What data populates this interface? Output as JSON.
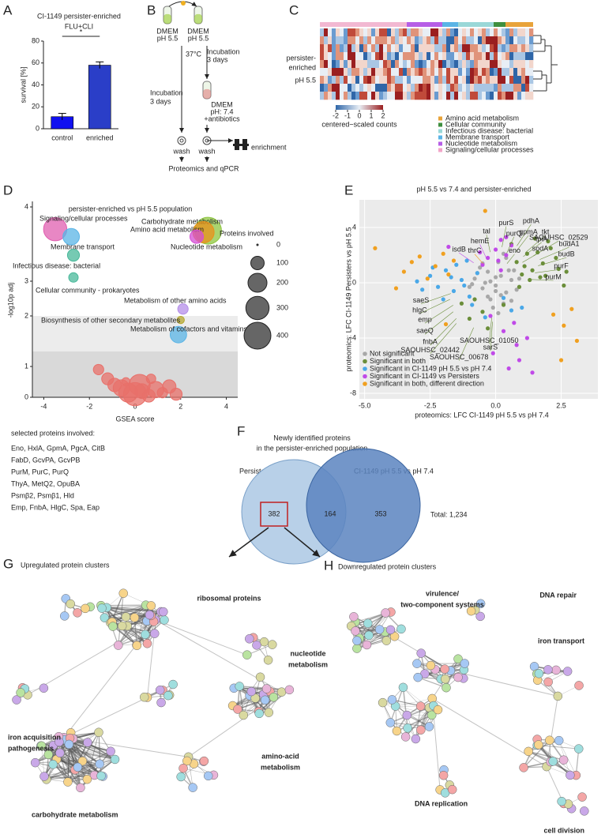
{
  "panel_labels": [
    "A",
    "B",
    "C",
    "D",
    "E",
    "F",
    "G",
    "H"
  ],
  "chart_data": [
    {
      "type": "bar",
      "title": "CI-1149 persister-enriched",
      "subtitle": "FLU+CLI",
      "y_label": "survival [%]",
      "categories": [
        "control",
        "enriched"
      ],
      "values": [
        11,
        58
      ],
      "errors": [
        3,
        3
      ],
      "colors": [
        "#1010f0",
        "#2a3ec8"
      ],
      "ylim": [
        0,
        80
      ],
      "yticks": [
        0,
        20,
        40,
        60,
        80
      ],
      "annotation": "*"
    },
    {
      "type": "bubble",
      "title": "persister-enriched vs pH 5.5 population",
      "x_label": "GSEA score",
      "y_label": "-log10p adj",
      "xlim": [
        -4.5,
        4.5
      ],
      "xticks": [
        -4,
        -2,
        0,
        2,
        4
      ],
      "ylim": [
        0,
        4.2
      ],
      "yticks": [
        0,
        1,
        2,
        3,
        4
      ],
      "thresholds": [
        1.3,
        2
      ],
      "size_legend_title": "Proteins involved",
      "size_legend": [
        0,
        100,
        200,
        300,
        400
      ],
      "series": [
        {
          "name": "Signaling/cellular processes",
          "color": "#e05fb0",
          "x": [
            -3.5
          ],
          "values": [
            3.7
          ],
          "sizes": [
            300
          ]
        },
        {
          "name": "Membrane transport",
          "color": "#5ab4e6",
          "x": [
            -2.8
          ],
          "values": [
            3.6
          ],
          "sizes": [
            150
          ]
        },
        {
          "name": "Carbohydrate metabolism",
          "color": "#8dc63f",
          "x": [
            3.2
          ],
          "values": [
            3.68
          ],
          "sizes": [
            400
          ]
        },
        {
          "name": "Amino acid metabolism",
          "color": "#e8901a",
          "x": [
            3.0
          ],
          "values": [
            3.66
          ],
          "sizes": [
            250
          ]
        },
        {
          "name": "Nucleotide metabolism",
          "color": "#d44ed4",
          "x": [
            2.7
          ],
          "values": [
            3.6
          ],
          "sizes": [
            100
          ]
        },
        {
          "name": "Infectious disease: bacterial",
          "color": "#48b89a",
          "x": [
            -2.7
          ],
          "values": [
            3.35
          ],
          "sizes": [
            80
          ]
        },
        {
          "name": "Cellular community - prokaryotes",
          "color": "#48b89a",
          "x": [
            -2.7
          ],
          "values": [
            3.05
          ],
          "sizes": [
            50
          ]
        },
        {
          "name": "Metabolism of other amino acids",
          "color": "#b48ee8",
          "x": [
            2.1
          ],
          "values": [
            2.2
          ],
          "sizes": [
            60
          ]
        },
        {
          "name": "Biosynthesis of other secondary metabolites",
          "color": "#b5a830",
          "x": [
            2.0
          ],
          "values": [
            1.92
          ],
          "sizes": [
            30
          ]
        },
        {
          "name": "Metabolism of cofactors and vitamins",
          "color": "#5ab4e6",
          "x": [
            1.9
          ],
          "values": [
            1.63
          ],
          "sizes": [
            150
          ]
        },
        {
          "color": "#e8706a",
          "x": [
            -1.6,
            -1.2,
            -0.9,
            -0.6,
            -0.3,
            0,
            0.3,
            0.6,
            0.9,
            1.2,
            1.5,
            1.8,
            -0.4,
            0.2,
            0.7
          ],
          "values": [
            0.9,
            0.6,
            0.4,
            0.3,
            0.15,
            0.1,
            0.2,
            0.05,
            0.25,
            0.15,
            0.35,
            0.1,
            0.5,
            0.4,
            0.6
          ],
          "sizes": [
            60,
            80,
            100,
            150,
            200,
            300,
            120,
            90,
            150,
            60,
            100,
            80,
            40,
            250,
            50
          ]
        }
      ]
    },
    {
      "type": "scatter",
      "title": "pH 5.5 vs 7.4 and persister-enriched",
      "x_label": "proteomics: LFC CI-1149 pH 5.5 vs pH 7.4",
      "y_label": "proteomics: LFC CI-1149 Persisters vs pH 5.5",
      "xlim": [
        -5.2,
        3.9
      ],
      "xticks": [
        {
          "value": -5,
          "label": "-5.0"
        },
        -2.5,
        {
          "value": 0,
          "label": "0.0"
        },
        2.5
      ],
      "ylim": [
        -8.4,
        6
      ],
      "yticks": [
        -8,
        -4,
        0,
        4
      ],
      "grid": true,
      "legend": "bottom-left",
      "series": [
        {
          "name": "Not significant",
          "color": "#a8a8a8",
          "x": [
            -0.8,
            -0.5,
            -0.3,
            0,
            0.2,
            0.4,
            0.6,
            -1,
            -0.6,
            -0.2,
            0.1,
            0.3,
            0.5,
            0.8,
            -0.4,
            0,
            0.2,
            -0.7,
            0.7,
            -0.1,
            0.4,
            -0.9,
            0.9,
            -0.3,
            0.1,
            0.6,
            -0.5,
            0.3,
            -0.2,
            0
          ],
          "values": [
            0.3,
            -0.4,
            0.8,
            -0.2,
            0.5,
            -0.7,
            0.2,
            -0.3,
            1.1,
            -1.2,
            1.5,
            -1.5,
            0.9,
            -0.5,
            0,
            0.4,
            -0.9,
            0.7,
            0.9,
            -1.8,
            1.8,
            -0.1,
            0.3,
            -1,
            -2.2,
            -1.3,
            1.4,
            2.1,
            0.1,
            -0.6
          ]
        },
        {
          "name": "Significant in both",
          "color": "#6b8e3a",
          "x": [
            0.8,
            1.2,
            1.5,
            1.8,
            2.1,
            2.4,
            2.7,
            1,
            1.4,
            1.9,
            2.3,
            2.6,
            0.6,
            1.1,
            1.6,
            2,
            0.9,
            1.3,
            -0.5,
            -1,
            -1.3,
            -0.3,
            -0.8,
            0.3,
            1.7
          ],
          "values": [
            1.5,
            2.1,
            3.2,
            1.4,
            2.5,
            1,
            0.8,
            0.6,
            0.9,
            0.5,
            1.8,
            -0.2,
            2.8,
            1.2,
            2.2,
            3.0,
            -0.3,
            0.2,
            -2.1,
            -2.6,
            -1.5,
            -3.3,
            -1.2,
            -1.6,
            0.4
          ]
        },
        {
          "name": "Significant in CI-1149 pH 5.5 vs pH 7.4",
          "color": "#4aa8e8",
          "x": [
            -2.5,
            -2.2,
            -1.9,
            -1.6,
            -1.3,
            -1,
            -0.7,
            -2.8,
            -2,
            -1.5,
            -1.2,
            -0.9,
            0.3,
            0.6,
            -3,
            -1.7,
            -0.4,
            1,
            -2.4,
            -1.1
          ],
          "values": [
            0.5,
            -0.3,
            0.9,
            -0.6,
            0.2,
            -1,
            0.7,
            -0.5,
            -1.2,
            1.3,
            -0.2,
            -1.6,
            -1.1,
            -2,
            0.1,
            0.4,
            -2.5,
            -1.8,
            1.1,
            1.6
          ]
        },
        {
          "name": "Significant in CI-1149 vs Persisters",
          "color": "#c04ae8",
          "x": [
            -0.3,
            0,
            0.2,
            0.4,
            0.6,
            -0.5,
            0.1,
            0.3,
            0.8,
            -0.1,
            0.5,
            -1.8,
            0.7,
            0.2,
            1.2,
            0.9,
            0.4,
            -0.2,
            1.4,
            -0.6
          ],
          "values": [
            1.8,
            2.4,
            3.1,
            2,
            2.7,
            1.3,
            1.6,
            -3.5,
            -4.5,
            -5.1,
            -6.2,
            2.6,
            -2.9,
            0.9,
            -4,
            -5.6,
            3.3,
            -2.4,
            -6.5,
            2.2
          ]
        },
        {
          "name": "Significant in both, different direction",
          "color": "#f0a020",
          "x": [
            -4.6,
            -3.5,
            -3.2,
            -2.9,
            -2.6,
            -2.3,
            -2,
            -1.8,
            -3.8,
            -1.6,
            2.2,
            2.6,
            2.9,
            3.1,
            2.5,
            -1.9,
            -0.4
          ],
          "values": [
            2.5,
            0.8,
            1.5,
            1.9,
            0.3,
            1.2,
            2.1,
            0.6,
            -0.4,
            1.6,
            -2.3,
            -3.1,
            -1.9,
            -4.2,
            -5.6,
            -3.0,
            5.2
          ]
        }
      ],
      "annotations": [
        {
          "text": "purS",
          "x": 0.4,
          "y": 4.3,
          "color": "#6b8e3a"
        },
        {
          "text": "pdhA",
          "x": 1.35,
          "y": 4.45,
          "color": "#6b8e3a"
        },
        {
          "text": "tal",
          "x": -0.35,
          "y": 3.7,
          "color": "#6b8e3a"
        },
        {
          "text": "purQ",
          "x": 0.7,
          "y": 3.55,
          "color": "#6b8e3a"
        },
        {
          "text": "gpmA",
          "x": 1.25,
          "y": 3.65,
          "color": "#6b8e3a"
        },
        {
          "text": "tkt",
          "x": 1.9,
          "y": 3.65,
          "color": "#6b8e3a"
        },
        {
          "text": "eno",
          "x": 0.72,
          "y": 2.3,
          "color": "#6b8e3a"
        },
        {
          "text": "tpiA",
          "x": 1.75,
          "y": 3.15,
          "color": "#6b8e3a"
        },
        {
          "text": "SAOUHSC_02529",
          "x": 2.4,
          "y": 3.25,
          "color": "#6b8e3a"
        },
        {
          "text": "budA1",
          "x": 2.8,
          "y": 2.8,
          "color": "#6b8e3a"
        },
        {
          "text": "budB",
          "x": 2.7,
          "y": 2.05,
          "color": "#6b8e3a"
        },
        {
          "text": "purF",
          "x": 2.5,
          "y": 1.2,
          "color": "#6b8e3a"
        },
        {
          "text": "hemE",
          "x": -0.6,
          "y": 3.0,
          "color": "#c04ae8"
        },
        {
          "text": "isdB",
          "x": -1.4,
          "y": 2.4,
          "color": "#c04ae8"
        },
        {
          "text": "thrC",
          "x": -0.8,
          "y": 2.3,
          "color": "#f0a020"
        },
        {
          "text": "sodA",
          "x": 1.7,
          "y": 2.45,
          "color": "#6b8e3a"
        },
        {
          "text": "purM",
          "x": 2.2,
          "y": 0.4,
          "color": "#6b8e3a"
        },
        {
          "text": "saeS",
          "x": -2.85,
          "y": -1.3,
          "color": "#6b8e3a"
        },
        {
          "text": "hlgC",
          "x": -2.9,
          "y": -2,
          "color": "#6b8e3a"
        },
        {
          "text": "emp",
          "x": -2.7,
          "y": -2.7,
          "color": "#6b8e3a"
        },
        {
          "text": "saeQ",
          "x": -2.7,
          "y": -3.5,
          "color": "#6b8e3a"
        },
        {
          "text": "fnbA",
          "x": -2.5,
          "y": -4.3,
          "color": "#6b8e3a"
        },
        {
          "text": "SAOUHSC_02442",
          "x": -2.5,
          "y": -4.9,
          "color": "#6b8e3a"
        },
        {
          "text": "SAOUHSC_00678",
          "x": -1.4,
          "y": -5.4,
          "color": "#6b8e3a"
        },
        {
          "text": "SAOUHSC_01050",
          "x": -0.25,
          "y": -4.2,
          "color": "#6b8e3a"
        },
        {
          "text": "sarS",
          "x": -0.2,
          "y": -4.7,
          "color": "#6b8e3a"
        }
      ]
    }
  ],
  "schematic": {
    "tube_left": [
      "DMEM",
      "pH 5.5"
    ],
    "tube_right": [
      "DMEM",
      "pH 5.5"
    ],
    "temperature": "37°C",
    "incubation_right": [
      "Incubation",
      "3 days"
    ],
    "incubation_left": [
      "Incubation",
      "3 days"
    ],
    "tube_antibiotics": [
      "DMEM",
      "pH: 7.4",
      "+antibiotics"
    ],
    "wash_left": "wash",
    "wash_right": "wash",
    "enrichment": "enrichment",
    "outcome": "Proteomics and qPCR"
  },
  "heatmap": {
    "row_labels": [
      [
        "persister-",
        "enriched"
      ],
      [
        "pH 5.5"
      ]
    ],
    "colorbar_ticks": [
      -2,
      -1,
      0,
      1,
      2
    ],
    "colorbar_label": "centered−scaled counts",
    "categories": [
      {
        "name": "Amino acid metabolism",
        "color": "#e8a33a"
      },
      {
        "name": "Cellular community",
        "color": "#3f8f3f"
      },
      {
        "name": "Infectious disease: bacterial",
        "color": "#9ad8d8"
      },
      {
        "name": "Membrane transport",
        "color": "#5ab4e6"
      },
      {
        "name": "Nucleotide metabolism",
        "color": "#b65ee6"
      },
      {
        "name": "Signaling/cellular processes",
        "color": "#f2a5c8"
      }
    ]
  },
  "selected_proteins": {
    "title": "selected proteins involved:",
    "lines": [
      {
        "text": "Eno, HxlA, GpmA, PgcA, CitB",
        "color": "#8dc63f"
      },
      {
        "text": "FabD, GcvPA, GcvPB",
        "color": "#e8901a"
      },
      {
        "text": "PurM, PurC, PurQ",
        "color": "#d4209a"
      },
      {
        "text": "ThyA, MetQ2, OpuBA",
        "color": "#4aa8e8"
      },
      {
        "text": "Psmβ2, Psmβ1, Hld",
        "color": "#6ab648"
      },
      {
        "text": "Emp, FnbA, HlgC, Spa, Eap",
        "color": "#3aa080"
      }
    ]
  },
  "venn": {
    "title": [
      "Newly identified proteins",
      "in the persister-enriched population"
    ],
    "left_label": "Persisters vs pH 5.5",
    "right_label": "CI-1149 pH 5.5 vs pH 7.4",
    "left_only": 382,
    "both": 164,
    "right_only": 353,
    "total_label": "Total: 1,234"
  },
  "network_g": {
    "title": "Upregulated protein clusters",
    "clusters": [
      {
        "label": [
          "ribosomal proteins"
        ],
        "color": "#f0a020"
      },
      {
        "label": [
          "nucleotide",
          "metabolism"
        ],
        "color": "#e03030"
      },
      {
        "label": [
          "iron acquisition",
          "pathogenesis"
        ],
        "color": "#3a7cc8"
      },
      {
        "label": [
          "amino-acid",
          "metabolism"
        ],
        "color": "#d02828"
      },
      {
        "label": [
          "carbohydrate metabolism"
        ],
        "color": "#7ab648"
      }
    ]
  },
  "network_h": {
    "title": "Downregulated protein clusters",
    "clusters": [
      {
        "label": [
          "virulence/",
          "two-component systems"
        ],
        "color": "#b02030"
      },
      {
        "label": [
          "DNA repair"
        ],
        "color": "#6a3a9a"
      },
      {
        "label": [
          "iron transport"
        ],
        "color": "#6ab648"
      },
      {
        "label": [
          "DNA replication"
        ],
        "color": "#6ab648"
      },
      {
        "label": [
          "cell division"
        ],
        "color": "#4aa8e8"
      }
    ]
  }
}
